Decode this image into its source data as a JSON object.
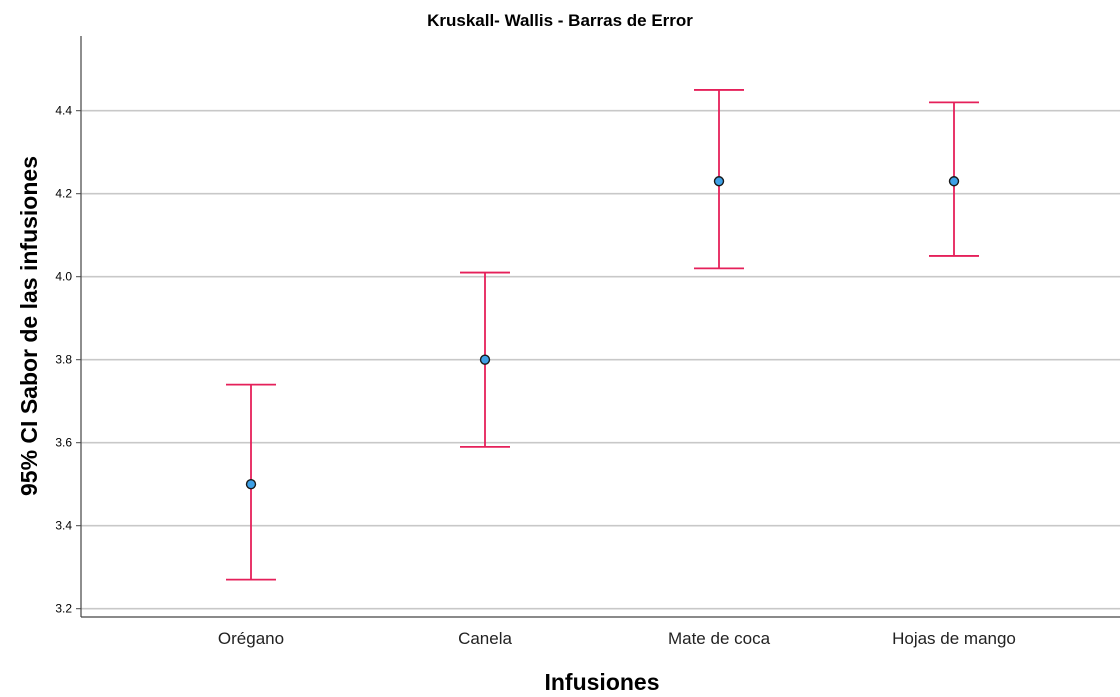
{
  "chart_data": {
    "type": "errorbar",
    "title": "Kruskall- Wallis - Barras de Error",
    "xlabel": "Infusiones",
    "ylabel": "95% CI Sabor de las infusiones",
    "ylim": [
      3.18,
      4.58
    ],
    "yticks": [
      "3.2",
      "3.4",
      "3.6",
      "3.8",
      "4.0",
      "4.2",
      "4.4"
    ],
    "grid": "horizontal",
    "categories": [
      "Orégano",
      "Canela",
      "Mate de coca",
      "Hojas de mango"
    ],
    "series": [
      {
        "mean": [
          3.5,
          3.8,
          4.23,
          4.23
        ],
        "lower": [
          3.27,
          3.59,
          4.02,
          4.05
        ],
        "upper": [
          3.74,
          4.01,
          4.45,
          4.42
        ]
      }
    ],
    "colors": {
      "errorbar": "#e5205a",
      "point_fill": "#3ea0e6"
    }
  }
}
